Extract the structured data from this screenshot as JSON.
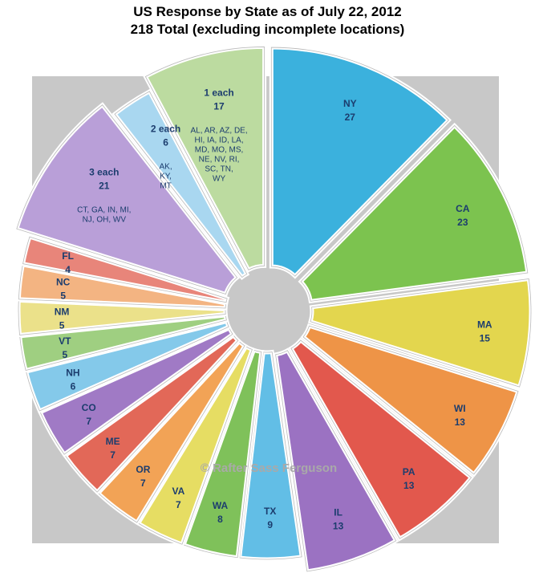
{
  "chart_data": {
    "type": "pie",
    "title": "US Response by State as of July 22, 2012",
    "subtitle": "218 Total (excluding incomplete locations)",
    "watermark": "© Rafter Sass Ferguson",
    "total": 218,
    "slices": [
      {
        "label": "NY",
        "value": 27,
        "color": "#3bb1dd"
      },
      {
        "label": "CA",
        "value": 23,
        "color": "#7cc34f"
      },
      {
        "label": "MA",
        "value": 15,
        "color": "#e3d64e"
      },
      {
        "label": "WI",
        "value": 13,
        "color": "#ee9447"
      },
      {
        "label": "PA",
        "value": 13,
        "color": "#e2584d"
      },
      {
        "label": "IL",
        "value": 13,
        "color": "#9b72c2"
      },
      {
        "label": "TX",
        "value": 9,
        "color": "#62bee6"
      },
      {
        "label": "WA",
        "value": 8,
        "color": "#7fc15a"
      },
      {
        "label": "VA",
        "value": 7,
        "color": "#e6dd63"
      },
      {
        "label": "OR",
        "value": 7,
        "color": "#f2a356"
      },
      {
        "label": "ME",
        "value": 7,
        "color": "#e26858"
      },
      {
        "label": "CO",
        "value": 7,
        "color": "#a07ac5"
      },
      {
        "label": "NH",
        "value": 6,
        "color": "#84c9ea"
      },
      {
        "label": "VT",
        "value": 5,
        "color": "#9fcf81"
      },
      {
        "label": "NM",
        "value": 5,
        "color": "#ebe18a"
      },
      {
        "label": "NC",
        "value": 5,
        "color": "#f3b482"
      },
      {
        "label": "FL",
        "value": 4,
        "color": "#e8857a"
      },
      {
        "label": "3 each",
        "value": 21,
        "color": "#b99fd8",
        "states": [
          "CT, GA, IN, MI,",
          "NJ, OH, WV"
        ]
      },
      {
        "label": "2 each",
        "value": 6,
        "color": "#a9d7f0",
        "states": [
          "AK,",
          "KY,",
          "MT"
        ]
      },
      {
        "label": "1 each",
        "value": 17,
        "color": "#bcdba0",
        "states": [
          "AL, AR, AZ, DE,",
          "HI, IA, ID, LA,",
          "MD, MO, MS,",
          "NE, NV, RI,",
          "SC, TN,",
          "WY"
        ]
      }
    ]
  }
}
